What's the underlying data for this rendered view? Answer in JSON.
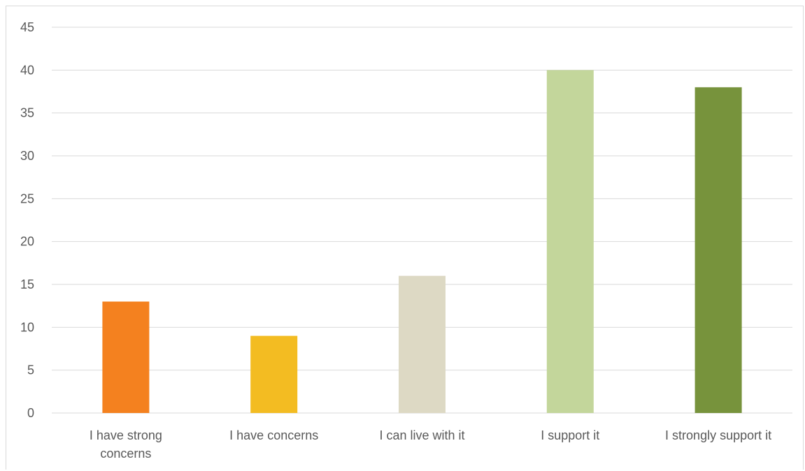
{
  "chart_data": {
    "type": "bar",
    "title": "",
    "xlabel": "",
    "ylabel": "",
    "ylim": [
      0,
      45
    ],
    "yticks": [
      0,
      5,
      10,
      15,
      20,
      25,
      30,
      35,
      40,
      45
    ],
    "grid": true,
    "legend": "none",
    "categories": [
      [
        "I have strong",
        "concerns"
      ],
      [
        "I have concerns"
      ],
      [
        "I can live with it"
      ],
      [
        "I support it"
      ],
      [
        "I strongly support it"
      ]
    ],
    "values": [
      13,
      9,
      16,
      40,
      38
    ],
    "colors": [
      "#F4811F",
      "#F3BC22",
      "#DDD9C4",
      "#C3D69B",
      "#77933C"
    ]
  }
}
